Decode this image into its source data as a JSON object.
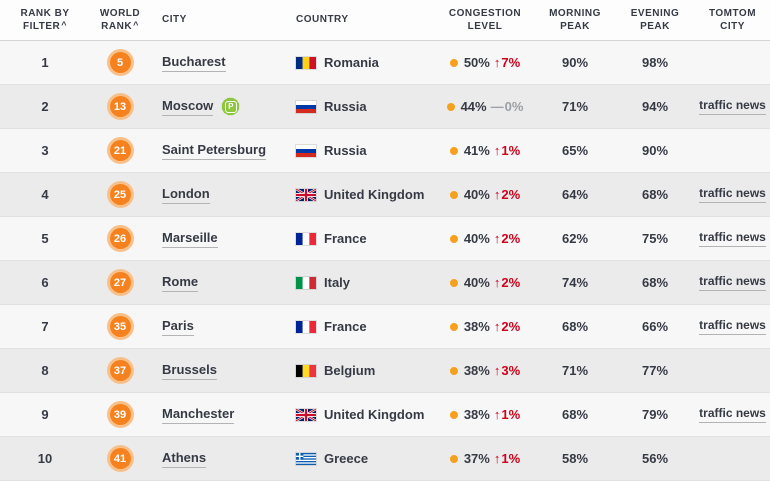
{
  "colors": {
    "accent_orange": "#f5821f",
    "badge_ring_orange": "#f9c189",
    "congestion_dot_orange": "#f5a01e",
    "trend_up_red": "#d0011b",
    "trend_flat_gray": "#9aa0a6",
    "text_dark": "#363a45",
    "row_alt_gray": "#ebebeb",
    "parking_badge_green": "#8dc63f"
  },
  "icons": {
    "trend_up": "↑",
    "trend_flat": "—",
    "parking_badge_letter": "P"
  },
  "header": {
    "columns": [
      {
        "id": "rank_by_filter",
        "line1": "RANK BY",
        "line2": "FILTER",
        "sort_caret": "^"
      },
      {
        "id": "world_rank",
        "line1": "WORLD",
        "line2": "RANK",
        "sort_caret": "^"
      },
      {
        "id": "city",
        "line1": "CITY",
        "line2": ""
      },
      {
        "id": "country",
        "line1": "COUNTRY",
        "line2": ""
      },
      {
        "id": "congestion_level",
        "line1": "CONGESTION",
        "line2": "LEVEL"
      },
      {
        "id": "morning_peak",
        "line1": "MORNING",
        "line2": "PEAK"
      },
      {
        "id": "evening_peak",
        "line1": "EVENING",
        "line2": "PEAK"
      },
      {
        "id": "tomtom_city",
        "line1": "TOMTOM",
        "line2": "CITY"
      }
    ]
  },
  "rows": [
    {
      "rank": "1",
      "world_rank": "5",
      "city": "Bucharest",
      "parking_badge": false,
      "country": "Romania",
      "flag": "romania",
      "congestion": "50%",
      "trend_dir": "up",
      "trend": "7%",
      "morning_peak": "90%",
      "evening_peak": "98%",
      "traffic_news": ""
    },
    {
      "rank": "2",
      "world_rank": "13",
      "city": "Moscow",
      "parking_badge": true,
      "country": "Russia",
      "flag": "russia",
      "congestion": "44%",
      "trend_dir": "flat",
      "trend": "0%",
      "morning_peak": "71%",
      "evening_peak": "94%",
      "traffic_news": "traffic news"
    },
    {
      "rank": "3",
      "world_rank": "21",
      "city": "Saint Petersburg",
      "parking_badge": false,
      "country": "Russia",
      "flag": "russia",
      "congestion": "41%",
      "trend_dir": "up",
      "trend": "1%",
      "morning_peak": "65%",
      "evening_peak": "90%",
      "traffic_news": ""
    },
    {
      "rank": "4",
      "world_rank": "25",
      "city": "London",
      "parking_badge": false,
      "country": "United Kingdom",
      "flag": "uk",
      "congestion": "40%",
      "trend_dir": "up",
      "trend": "2%",
      "morning_peak": "64%",
      "evening_peak": "68%",
      "traffic_news": "traffic news"
    },
    {
      "rank": "5",
      "world_rank": "26",
      "city": "Marseille",
      "parking_badge": false,
      "country": "France",
      "flag": "france",
      "congestion": "40%",
      "trend_dir": "up",
      "trend": "2%",
      "morning_peak": "62%",
      "evening_peak": "75%",
      "traffic_news": "traffic news"
    },
    {
      "rank": "6",
      "world_rank": "27",
      "city": "Rome",
      "parking_badge": false,
      "country": "Italy",
      "flag": "italy",
      "congestion": "40%",
      "trend_dir": "up",
      "trend": "2%",
      "morning_peak": "74%",
      "evening_peak": "68%",
      "traffic_news": "traffic news"
    },
    {
      "rank": "7",
      "world_rank": "35",
      "city": "Paris",
      "parking_badge": false,
      "country": "France",
      "flag": "france",
      "congestion": "38%",
      "trend_dir": "up",
      "trend": "2%",
      "morning_peak": "68%",
      "evening_peak": "66%",
      "traffic_news": "traffic news"
    },
    {
      "rank": "8",
      "world_rank": "37",
      "city": "Brussels",
      "parking_badge": false,
      "country": "Belgium",
      "flag": "belgium",
      "congestion": "38%",
      "trend_dir": "up",
      "trend": "3%",
      "morning_peak": "71%",
      "evening_peak": "77%",
      "traffic_news": ""
    },
    {
      "rank": "9",
      "world_rank": "39",
      "city": "Manchester",
      "parking_badge": false,
      "country": "United Kingdom",
      "flag": "uk",
      "congestion": "38%",
      "trend_dir": "up",
      "trend": "1%",
      "morning_peak": "68%",
      "evening_peak": "79%",
      "traffic_news": "traffic news"
    },
    {
      "rank": "10",
      "world_rank": "41",
      "city": "Athens",
      "parking_badge": false,
      "country": "Greece",
      "flag": "greece",
      "congestion": "37%",
      "trend_dir": "up",
      "trend": "1%",
      "morning_peak": "58%",
      "evening_peak": "56%",
      "traffic_news": ""
    }
  ]
}
